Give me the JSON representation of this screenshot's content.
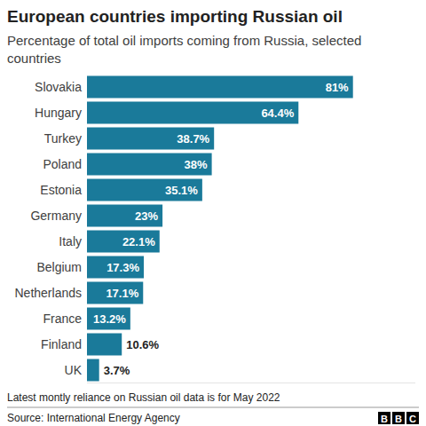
{
  "chart_data": {
    "type": "bar",
    "orientation": "horizontal",
    "title": "European countries importing Russian oil",
    "subtitle": "Percentage of total oil imports coming from Russia, selected countries",
    "categories": [
      "Slovakia",
      "Hungary",
      "Turkey",
      "Poland",
      "Estonia",
      "Germany",
      "Italy",
      "Belgium",
      "Netherlands",
      "France",
      "Finland",
      "UK"
    ],
    "values": [
      81,
      64.4,
      38.7,
      38,
      35.1,
      23,
      22.1,
      17.3,
      17.1,
      13.2,
      10.6,
      3.7
    ],
    "value_labels": [
      "81%",
      "64.4%",
      "38.7%",
      "38%",
      "35.1%",
      "23%",
      "22.1%",
      "17.3%",
      "17.1%",
      "13.2%",
      "10.6%",
      "3.7%"
    ],
    "color": "#1a7a9a",
    "xlim": [
      0,
      100
    ],
    "data_labels": true,
    "tick_labels": "y",
    "grid": false,
    "note": "Latest montly reliance on Russian oil data is for May 2022",
    "source": "Source: International Energy Agency",
    "logo": "BBC"
  }
}
